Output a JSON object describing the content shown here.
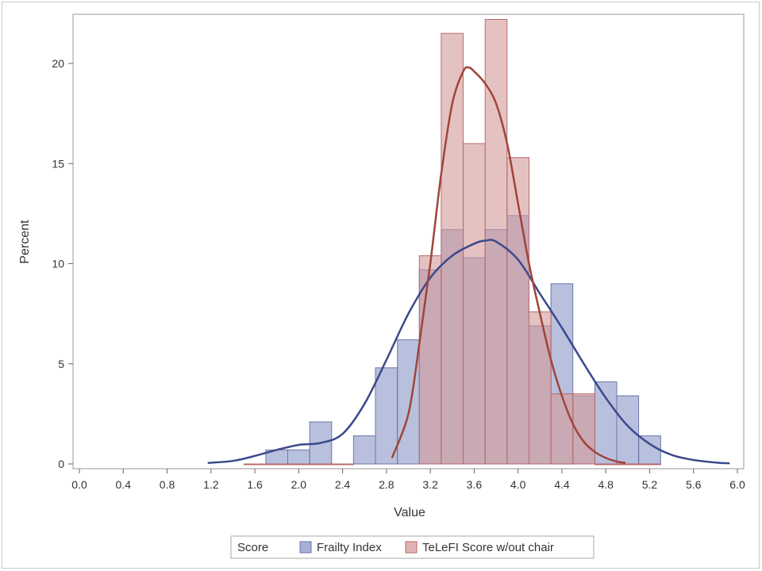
{
  "chart_data": {
    "type": "histogram",
    "xlabel": "Value",
    "ylabel": "Percent",
    "xlim": [
      0.0,
      6.0
    ],
    "ylim": [
      0,
      22.2
    ],
    "x_ticks": [
      "0.0",
      "0.4",
      "0.8",
      "1.2",
      "1.6",
      "2.0",
      "2.4",
      "2.8",
      "3.2",
      "3.6",
      "4.0",
      "4.4",
      "4.8",
      "5.2",
      "5.6",
      "6.0"
    ],
    "y_ticks": [
      "0",
      "5",
      "10",
      "15",
      "20"
    ],
    "bin_width": 0.2,
    "legend_title": "Score",
    "legend_position": "bottom",
    "series": [
      {
        "name": "Frailty Index",
        "color": "#8a96c6",
        "edge_color": "#6a76aa",
        "line_color": "#3b4a8c",
        "bins": [
          {
            "x": 1.8,
            "value": 0.7
          },
          {
            "x": 2.0,
            "value": 0.7
          },
          {
            "x": 2.2,
            "value": 2.1
          },
          {
            "x": 2.4,
            "value": 0.0
          },
          {
            "x": 2.6,
            "value": 1.4
          },
          {
            "x": 2.8,
            "value": 4.8
          },
          {
            "x": 3.0,
            "value": 6.2
          },
          {
            "x": 3.2,
            "value": 9.7
          },
          {
            "x": 3.4,
            "value": 11.7
          },
          {
            "x": 3.6,
            "value": 10.3
          },
          {
            "x": 3.8,
            "value": 11.7
          },
          {
            "x": 4.0,
            "value": 12.4
          },
          {
            "x": 4.2,
            "value": 6.9
          },
          {
            "x": 4.4,
            "value": 9.0
          },
          {
            "x": 4.6,
            "value": 3.4
          },
          {
            "x": 4.8,
            "value": 4.1
          },
          {
            "x": 5.0,
            "value": 3.4
          },
          {
            "x": 5.2,
            "value": 1.4
          }
        ],
        "density_curve": [
          [
            1.17,
            0.05
          ],
          [
            1.4,
            0.15
          ],
          [
            1.6,
            0.4
          ],
          [
            1.8,
            0.7
          ],
          [
            2.0,
            0.95
          ],
          [
            2.2,
            1.05
          ],
          [
            2.4,
            1.5
          ],
          [
            2.6,
            3.0
          ],
          [
            2.8,
            5.2
          ],
          [
            3.0,
            7.5
          ],
          [
            3.2,
            9.3
          ],
          [
            3.4,
            10.4
          ],
          [
            3.6,
            11.0
          ],
          [
            3.7,
            11.15
          ],
          [
            3.8,
            11.1
          ],
          [
            4.0,
            10.2
          ],
          [
            4.2,
            8.5
          ],
          [
            4.4,
            6.8
          ],
          [
            4.6,
            5.0
          ],
          [
            4.8,
            3.3
          ],
          [
            5.0,
            1.9
          ],
          [
            5.2,
            1.0
          ],
          [
            5.4,
            0.45
          ],
          [
            5.6,
            0.2
          ],
          [
            5.8,
            0.07
          ],
          [
            5.93,
            0.03
          ]
        ]
      },
      {
        "name": "TeLeFI Score w/out chair",
        "color": "#d49a9a",
        "edge_color": "#b86a6a",
        "line_color": "#a0443a",
        "bins": [
          {
            "x": 1.6,
            "value": 0.0
          },
          {
            "x": 1.8,
            "value": 0.0
          },
          {
            "x": 2.0,
            "value": 0.0
          },
          {
            "x": 2.2,
            "value": 0.0
          },
          {
            "x": 2.4,
            "value": 0.0
          },
          {
            "x": 3.2,
            "value": 10.4
          },
          {
            "x": 3.4,
            "value": 21.5
          },
          {
            "x": 3.6,
            "value": 16.0
          },
          {
            "x": 3.8,
            "value": 22.2
          },
          {
            "x": 4.0,
            "value": 15.3
          },
          {
            "x": 4.2,
            "value": 7.6
          },
          {
            "x": 4.4,
            "value": 3.5
          },
          {
            "x": 4.6,
            "value": 3.5
          },
          {
            "x": 4.8,
            "value": 0.0
          },
          {
            "x": 5.0,
            "value": 0.0
          },
          {
            "x": 5.2,
            "value": 0.0
          }
        ],
        "density_curve": [
          [
            2.85,
            0.3
          ],
          [
            3.0,
            2.5
          ],
          [
            3.1,
            6.0
          ],
          [
            3.2,
            10.0
          ],
          [
            3.3,
            14.5
          ],
          [
            3.4,
            18.0
          ],
          [
            3.5,
            19.6
          ],
          [
            3.55,
            19.8
          ],
          [
            3.6,
            19.6
          ],
          [
            3.7,
            19.0
          ],
          [
            3.8,
            18.0
          ],
          [
            3.9,
            16.0
          ],
          [
            4.0,
            13.0
          ],
          [
            4.1,
            10.0
          ],
          [
            4.2,
            7.5
          ],
          [
            4.3,
            5.2
          ],
          [
            4.4,
            3.4
          ],
          [
            4.5,
            2.0
          ],
          [
            4.6,
            1.1
          ],
          [
            4.7,
            0.6
          ],
          [
            4.8,
            0.3
          ],
          [
            4.9,
            0.12
          ],
          [
            4.98,
            0.05
          ]
        ]
      }
    ]
  }
}
